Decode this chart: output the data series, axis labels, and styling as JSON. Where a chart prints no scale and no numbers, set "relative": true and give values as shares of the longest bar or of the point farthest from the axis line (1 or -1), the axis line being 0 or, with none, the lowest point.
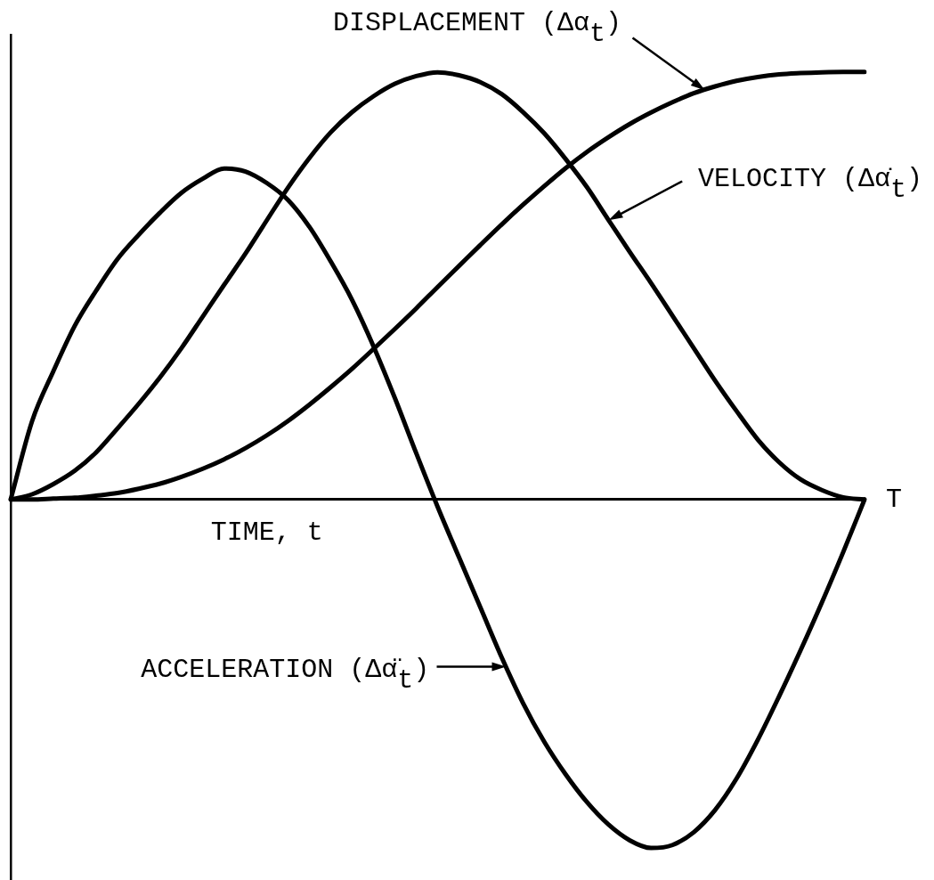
{
  "chart_data": {
    "type": "line",
    "relative": true,
    "xlabel": "TIME, t",
    "annotations": [
      "T"
    ],
    "categories": [
      null,
      null,
      null,
      null,
      null,
      null,
      null,
      null,
      null,
      null,
      null,
      null,
      null,
      null,
      null,
      null,
      null,
      null,
      null,
      null,
      null,
      null,
      null,
      null,
      null,
      null,
      null,
      null,
      null,
      null,
      null,
      null,
      null,
      null,
      null,
      null,
      null,
      null,
      null,
      null,
      null
    ],
    "series": [
      {
        "name": "DISPLACEMENT (Δα$_{t}$)",
        "color": "#000000",
        "values": [
          0,
          0,
          0.002,
          0.004,
          0.009,
          0.015,
          0.025,
          0.037,
          0.053,
          0.072,
          0.094,
          0.12,
          0.15,
          0.184,
          0.222,
          0.263,
          0.306,
          0.352,
          0.399,
          0.447,
          0.497,
          0.546,
          0.595,
          0.643,
          0.689,
          0.733,
          0.775,
          0.813,
          0.847,
          0.878,
          0.905,
          0.929,
          0.95,
          0.966,
          0.979,
          0.988,
          0.994,
          0.997,
          0.999,
          1.0,
          1.0
        ]
      },
      {
        "name": "VELOCITY (Δα̇$_{t}$)",
        "color": "#000000",
        "values": [
          0,
          0.012,
          0.036,
          0.067,
          0.11,
          0.166,
          0.224,
          0.286,
          0.354,
          0.428,
          0.502,
          0.575,
          0.653,
          0.73,
          0.799,
          0.859,
          0.906,
          0.943,
          0.972,
          0.99,
          0.999,
          0.992,
          0.976,
          0.948,
          0.906,
          0.856,
          0.796,
          0.73,
          0.654,
          0.579,
          0.506,
          0.43,
          0.354,
          0.278,
          0.207,
          0.14,
          0.087,
          0.047,
          0.022,
          0.005,
          0
        ]
      },
      {
        "name": "ACCELERATION (Δα̈$_{t}$)",
        "color": "#000000",
        "values": [
          0,
          0.183,
          0.3,
          0.406,
          0.488,
          0.562,
          0.619,
          0.671,
          0.717,
          0.75,
          0.774,
          0.767,
          0.74,
          0.7,
          0.637,
          0.556,
          0.466,
          0.358,
          0.237,
          0.108,
          -0.017,
          -0.135,
          -0.252,
          -0.369,
          -0.476,
          -0.567,
          -0.643,
          -0.708,
          -0.76,
          -0.797,
          -0.815,
          -0.808,
          -0.778,
          -0.726,
          -0.653,
          -0.562,
          -0.46,
          -0.353,
          -0.241,
          -0.123,
          0
        ]
      }
    ]
  }
}
